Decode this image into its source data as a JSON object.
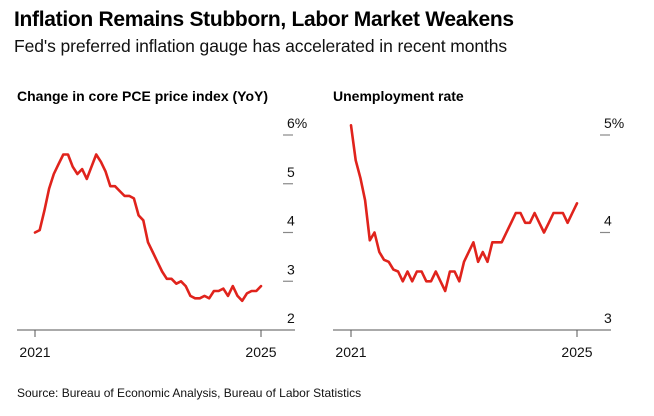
{
  "header": {
    "title": "Inflation Remains Stubborn, Labor Market Weakens",
    "subtitle": "Fed's preferred inflation gauge has accelerated in recent months"
  },
  "footer": {
    "source": "Source: Bureau of Economic Analysis, Bureau of Labor Statistics"
  },
  "colors": {
    "line": "#e0231c",
    "axis": "#555555",
    "tick": "#888888"
  },
  "chart_data": [
    {
      "type": "line",
      "title": "Change in core PCE price index (YoY)",
      "xlabel": "",
      "ylabel": "",
      "x_ticks": [
        "2021",
        "2025"
      ],
      "x_range": [
        2021,
        2025
      ],
      "y_ticks": [
        "6%",
        "5",
        "4",
        "3",
        "2"
      ],
      "y_tick_values": [
        6,
        5,
        4,
        3,
        2
      ],
      "ylim": [
        2,
        6
      ],
      "grid": false,
      "y_axis_side": "right",
      "series": [
        {
          "name": "Core PCE YoY",
          "x_start": 2021.0,
          "x_step_months": 1,
          "values": [
            4.0,
            4.05,
            4.45,
            4.9,
            5.2,
            5.4,
            5.6,
            5.6,
            5.35,
            5.2,
            5.3,
            5.1,
            5.35,
            5.6,
            5.45,
            5.25,
            4.95,
            4.95,
            4.85,
            4.75,
            4.75,
            4.7,
            4.35,
            4.25,
            3.8,
            3.6,
            3.4,
            3.2,
            3.05,
            3.05,
            2.95,
            3.0,
            2.9,
            2.7,
            2.65,
            2.65,
            2.7,
            2.65,
            2.8,
            2.8,
            2.85,
            2.7,
            2.9,
            2.7,
            2.6,
            2.75,
            2.8,
            2.8,
            2.9
          ]
        }
      ]
    },
    {
      "type": "line",
      "title": "Unemployment rate",
      "xlabel": "",
      "ylabel": "",
      "x_ticks": [
        "2021",
        "2025"
      ],
      "x_range": [
        2021,
        2025
      ],
      "y_ticks": [
        "5%",
        "4",
        "3"
      ],
      "y_tick_values": [
        5,
        4,
        3
      ],
      "ylim": [
        3,
        5
      ],
      "grid": false,
      "y_axis_side": "right",
      "series": [
        {
          "name": "Unemployment rate",
          "x_start": 2021.0,
          "x_step_months": 1,
          "values": [
            5.1,
            4.74,
            4.56,
            4.33,
            3.92,
            4.0,
            3.8,
            3.72,
            3.7,
            3.62,
            3.6,
            3.5,
            3.6,
            3.5,
            3.6,
            3.6,
            3.5,
            3.5,
            3.6,
            3.5,
            3.4,
            3.6,
            3.6,
            3.5,
            3.7,
            3.8,
            3.9,
            3.7,
            3.8,
            3.7,
            3.9,
            3.9,
            3.9,
            4.0,
            4.1,
            4.2,
            4.2,
            4.1,
            4.1,
            4.2,
            4.1,
            4.0,
            4.1,
            4.2,
            4.2,
            4.2,
            4.1,
            4.2,
            4.3
          ]
        }
      ]
    }
  ]
}
